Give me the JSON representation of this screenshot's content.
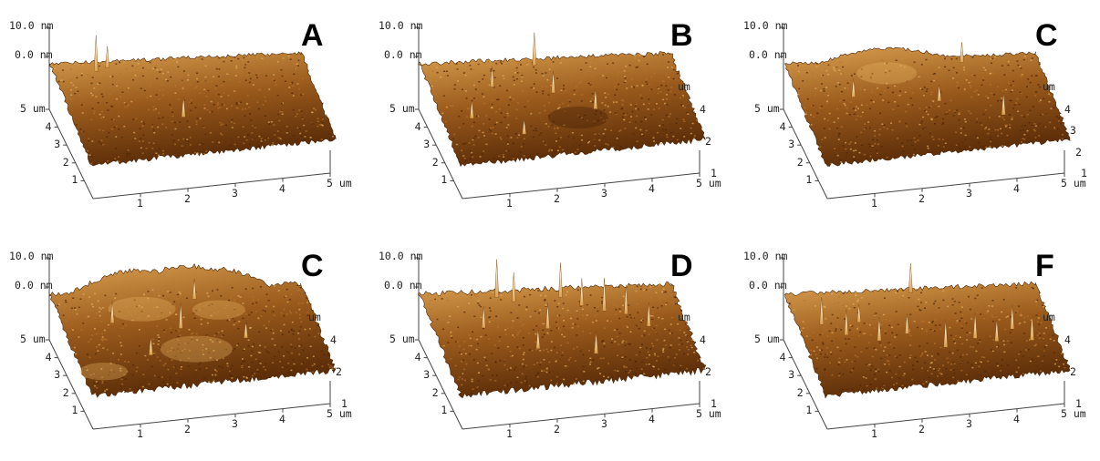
{
  "panels": [
    {
      "letter": "A",
      "z_top": "10.0 nm",
      "z_zero": "0.0 nm",
      "x_ticks": [
        "1",
        "2",
        "3",
        "4",
        "5 um"
      ],
      "y_ticks": [
        "5 um",
        "4",
        "3",
        "2",
        "1"
      ],
      "right_ticks": [],
      "right_unit": ""
    },
    {
      "letter": "B",
      "z_top": "10.0 nm",
      "z_zero": "0.0 nm",
      "x_ticks": [
        "1",
        "2",
        "3",
        "4",
        "5 um"
      ],
      "y_ticks": [
        "5 um",
        "4",
        "3",
        "2",
        "1"
      ],
      "right_ticks": [
        "4",
        "2",
        "1"
      ],
      "right_unit": "um"
    },
    {
      "letter": "C",
      "z_top": "10.0 nm",
      "z_zero": "0.0 nm",
      "x_ticks": [
        "1",
        "2",
        "3",
        "4",
        "5 um"
      ],
      "y_ticks": [
        "5 um",
        "4",
        "3",
        "2",
        "1"
      ],
      "right_ticks": [
        "4",
        "3",
        "2",
        "1"
      ],
      "right_unit": "um"
    },
    {
      "letter": "C",
      "z_top": "10.0 nm",
      "z_zero": "0.0 nm",
      "x_ticks": [
        "1",
        "2",
        "3",
        "4",
        "5 um"
      ],
      "y_ticks": [
        "5 um",
        "4",
        "3",
        "2",
        "1"
      ],
      "right_ticks": [
        "4",
        "2",
        "1"
      ],
      "right_unit": "um"
    },
    {
      "letter": "D",
      "z_top": "10.0 nm",
      "z_zero": "0.0 nm",
      "x_ticks": [
        "1",
        "2",
        "3",
        "4",
        "5 um"
      ],
      "y_ticks": [
        "5 um",
        "4",
        "3",
        "2",
        "1"
      ],
      "right_ticks": [
        "4",
        "2",
        "1"
      ],
      "right_unit": "um"
    },
    {
      "letter": "F",
      "z_top": "10.0 nm",
      "z_zero": "0.0 nm",
      "x_ticks": [
        "1",
        "2",
        "3",
        "4",
        "5 um"
      ],
      "y_ticks": [
        "5 um",
        "4",
        "3",
        "2",
        "1"
      ],
      "right_ticks": [
        "4",
        "2",
        "1"
      ],
      "right_unit": "um"
    }
  ],
  "colors": {
    "surface_dark": "#5a2c08",
    "surface_mid": "#9a5a1c",
    "surface_light": "#d9a050",
    "axis": "#444444"
  }
}
